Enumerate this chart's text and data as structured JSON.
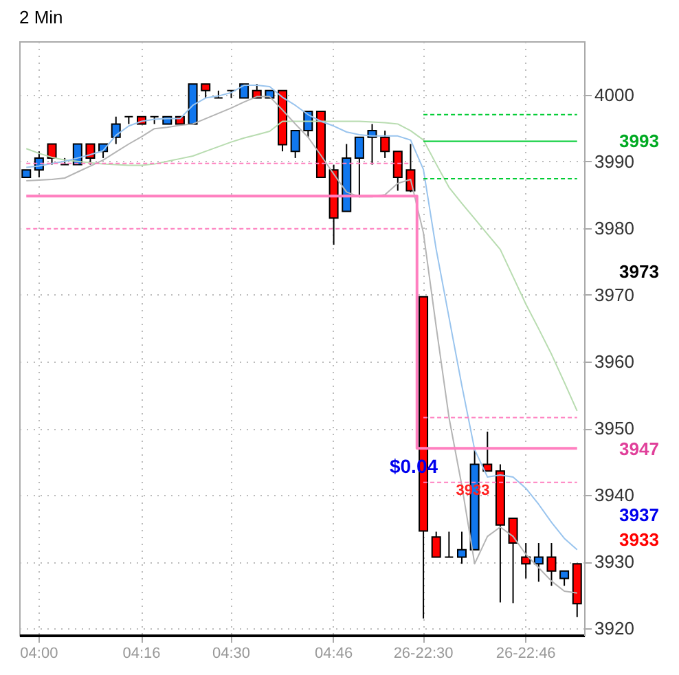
{
  "chart_data": {
    "type": "candlestick",
    "title": "2 Min",
    "categories": [
      null,
      "04:00",
      null,
      null,
      null,
      null,
      null,
      null,
      null,
      "04:16",
      null,
      null,
      null,
      null,
      null,
      null,
      "04:30",
      null,
      null,
      null,
      null,
      null,
      null,
      null,
      "04:46",
      null,
      null,
      null,
      null,
      null,
      null,
      "26-22:30",
      null,
      null,
      null,
      null,
      null,
      null,
      null,
      "26-22:46",
      null,
      null,
      null,
      null
    ],
    "ohlc": [
      [
        3987.6,
        3988.7,
        3987.6,
        3988.7
      ],
      [
        3988.7,
        3991.5,
        3987.6,
        3990.5
      ],
      [
        3992.6,
        3992.6,
        3989.5,
        3990.5
      ],
      [
        3989.5,
        3990.5,
        3989.5,
        3989.5
      ],
      [
        3989.5,
        3992.6,
        3989.5,
        3992.6
      ],
      [
        3992.6,
        3992.6,
        3989.5,
        3990.5
      ],
      [
        3991.5,
        3992.6,
        3990.5,
        3992.6
      ],
      [
        3993.6,
        3996.7,
        3992.6,
        3995.6
      ],
      [
        3996.7,
        3996.7,
        3995.6,
        3996.7
      ],
      [
        3996.7,
        3996.7,
        3995.6,
        3995.6
      ],
      [
        3996.7,
        3996.7,
        3995.6,
        3996.7
      ],
      [
        3995.6,
        3996.7,
        3995.6,
        3996.7
      ],
      [
        3996.7,
        3996.7,
        3995.6,
        3995.6
      ],
      [
        3995.6,
        4001.6,
        3995.6,
        4001.6
      ],
      [
        4001.6,
        4001.6,
        3999.5,
        4000.6
      ],
      [
        3999.5,
        4000.6,
        3999.5,
        3999.5
      ],
      [
        4000.6,
        4000.6,
        3999.5,
        4000.6
      ],
      [
        3999.5,
        4001.6,
        3999.5,
        4001.6
      ],
      [
        4000.6,
        4001.6,
        3999.5,
        3999.5
      ],
      [
        3999.5,
        4000.6,
        3999.5,
        4000.6
      ],
      [
        4000.6,
        4000.6,
        3991.5,
        3992.5
      ],
      [
        3991.5,
        3994.6,
        3990.5,
        3994.6
      ],
      [
        3994.6,
        3997.5,
        3993.6,
        3997.5
      ],
      [
        3997.5,
        3997.5,
        3987.6,
        3987.6
      ],
      [
        3988.7,
        3989.5,
        3977.5,
        3981.5
      ],
      [
        3982.5,
        3992.6,
        3982.5,
        3990.5
      ],
      [
        3990.5,
        3993.6,
        3984.6,
        3993.6
      ],
      [
        3993.6,
        3995.6,
        3989.5,
        3994.6
      ],
      [
        3993.6,
        3994.6,
        3990.5,
        3991.5
      ],
      [
        3991.5,
        3991.5,
        3985.6,
        3987.6
      ],
      [
        3988.7,
        3992.6,
        3985.4,
        3985.6
      ],
      [
        3969.7,
        3969.7,
        3921.5,
        3934.6
      ],
      [
        3933.7,
        3934.5,
        3930.7,
        3930.7
      ],
      [
        3930.7,
        3934.5,
        3930.7,
        3930.7
      ],
      [
        3930.7,
        3934.5,
        3929.7,
        3931.8
      ],
      [
        3931.8,
        3946.8,
        3931.8,
        3944.6
      ],
      [
        3944.6,
        3949.5,
        3943.6,
        3943.6
      ],
      [
        3943.6,
        3944.6,
        3923.9,
        3935.5
      ],
      [
        3936.5,
        3936.5,
        3923.8,
        3932.8
      ],
      [
        3930.7,
        3932.8,
        3927.5,
        3929.7
      ],
      [
        3929.7,
        3932.8,
        3927.0,
        3930.7
      ],
      [
        3930.7,
        3932.8,
        3926.4,
        3928.6
      ],
      [
        3927.5,
        3928.6,
        3926.4,
        3928.6
      ],
      [
        3929.7,
        3929.7,
        3921.7,
        3923.7
      ]
    ],
    "colors": [
      "#1177ee",
      "#1177ee",
      "#ff0000",
      "#000000",
      "#1177ee",
      "#ff0000",
      "#1177ee",
      "#1177ee",
      "#000000",
      "#ff0000",
      "#000000",
      "#1177ee",
      "#ff0000",
      "#1177ee",
      "#ff0000",
      "#000000",
      "#000000",
      "#1177ee",
      "#ff0000",
      "#1177ee",
      "#ff0000",
      "#1177ee",
      "#1177ee",
      "#ff0000",
      "#ff0000",
      "#1177ee",
      "#1177ee",
      "#1177ee",
      "#ff0000",
      "#ff0000",
      "#ff0000",
      "#ff0000",
      "#ff0000",
      "#000000",
      "#1177ee",
      "#1177ee",
      "#ff0000",
      "#ff0000",
      "#ff0000",
      "#ff0000",
      "#1177ee",
      "#ff0000",
      "#1177ee",
      "#ff0000"
    ],
    "series": [
      {
        "type": "line",
        "color": "#b8dcb0",
        "line_style": "solid",
        "values": [
          3991.9,
          3991.2,
          3990.6,
          3990.2,
          3990,
          3989.8,
          3989.6,
          3989.5,
          3989.4,
          3989.4,
          3989.6,
          3990,
          3990.4,
          3990.8,
          3991.5,
          3992.2,
          3992.9,
          3993.5,
          3994,
          3994.5,
          3996,
          3996,
          3996,
          3996,
          3996,
          3996,
          3996,
          3995.9,
          3995.8,
          3995.6,
          3994.6,
          3993.2,
          3989.6,
          3986.1,
          3983.7,
          3981.4,
          3979.1,
          3976.8,
          3972.7,
          3968.6,
          3964.9,
          3961.1,
          3956.9,
          3952.6
        ]
      },
      {
        "type": "line",
        "color": "#b4b4b4",
        "line_style": "solid",
        "values": [
          3987.1,
          3987.2,
          3987.3,
          3987.5,
          3988.4,
          3989.3,
          3990.2,
          3991.4,
          3992.6,
          3993.7,
          3994.9,
          3995.1,
          3995.4,
          3995.6,
          3996.4,
          3997.2,
          3998,
          3998.9,
          3999.7,
          3999.7,
          3997.7,
          3995.6,
          3993.6,
          3990.9,
          3988.1,
          3985.4,
          3984.7,
          3984.7,
          3985,
          3986.7,
          3987.3,
          3979.3,
          3965.2,
          3951.6,
          3941.4,
          3929.7,
          3933.8,
          3935.2,
          3933.8,
          3931.1,
          3929.1,
          3927.1,
          3925.6,
          3925.3
        ]
      },
      {
        "type": "line",
        "color": "#99c4ee",
        "line_style": "solid",
        "values": [
          3989.1,
          3989.3,
          3989.7,
          3990,
          3990.5,
          3991,
          3991.6,
          3993.9,
          3995.3,
          3996,
          3996.3,
          3996.4,
          3996.4,
          3998.4,
          3999.5,
          3999.8,
          4000.3,
          4001.4,
          4001.4,
          4001.2,
          3999.6,
          3998.4,
          3997,
          3996,
          3995.3,
          3994.4,
          3994,
          3993.8,
          3993.8,
          3993.8,
          3993.2,
          3988.8,
          3976.8,
          3966.6,
          3956.4,
          3946.8,
          3942.7,
          3943,
          3942.7,
          3941,
          3938.6,
          3935.9,
          3933.5,
          3931.8
        ]
      },
      {
        "type": "step",
        "color": "#ff80c0",
        "line_style": "solid",
        "values": [
          3984.8,
          3984.8,
          3984.8,
          3984.8,
          3984.8,
          3984.8,
          3984.8,
          3984.8,
          3984.8,
          3984.8,
          3984.8,
          3984.8,
          3984.8,
          3984.8,
          3984.8,
          3984.8,
          3984.8,
          3984.8,
          3984.8,
          3984.8,
          3984.8,
          3984.8,
          3984.8,
          3984.8,
          3984.8,
          3984.8,
          3984.8,
          3984.8,
          3984.8,
          3984.8,
          3984.8,
          3947,
          3947,
          3947,
          3947,
          3947,
          3947,
          3947,
          3947,
          3947,
          3947,
          3947,
          3947,
          3947
        ]
      },
      {
        "type": "line",
        "color": "#ff80c0",
        "line_style": "dashed",
        "values": [
          3989.7,
          3989.7,
          3989.7,
          3989.7,
          3989.7,
          3989.7,
          3989.7,
          3989.7,
          3989.7,
          3989.7,
          3989.7,
          3989.7,
          3989.7,
          3989.7,
          3989.7,
          3989.7,
          3989.7,
          3989.7,
          3989.7,
          3989.7,
          3989.7,
          3989.7,
          3989.7,
          3989.7,
          3989.7,
          3989.7,
          3989.7,
          3989.7,
          3989.7,
          3989.7,
          3989.7,
          null,
          null,
          null,
          null,
          null,
          null,
          null,
          null,
          null,
          null,
          null,
          null,
          null
        ]
      },
      {
        "type": "line",
        "color": "#ff80c0",
        "line_style": "dashed",
        "values": [
          3979.9,
          3979.9,
          3979.9,
          3979.9,
          3979.9,
          3979.9,
          3979.9,
          3979.9,
          3979.9,
          3979.9,
          3979.9,
          3979.9,
          3979.9,
          3979.9,
          3979.9,
          3979.9,
          3979.9,
          3979.9,
          3979.9,
          3979.9,
          3979.9,
          3979.9,
          3979.9,
          3979.9,
          3979.9,
          3979.9,
          3979.9,
          3979.9,
          3979.9,
          3979.9,
          3979.9,
          null,
          null,
          null,
          null,
          null,
          null,
          null,
          null,
          null,
          null,
          null,
          null,
          null
        ]
      },
      {
        "type": "line",
        "color": "#ff80c0",
        "line_style": "dashed",
        "values": [
          null,
          null,
          null,
          null,
          null,
          null,
          null,
          null,
          null,
          null,
          null,
          null,
          null,
          null,
          null,
          null,
          null,
          null,
          null,
          null,
          null,
          null,
          null,
          null,
          null,
          null,
          null,
          null,
          null,
          null,
          null,
          3951.6,
          3951.6,
          3951.6,
          3951.6,
          3951.6,
          3951.6,
          3951.6,
          3951.6,
          3951.6,
          3951.6,
          3951.6,
          3951.6,
          3951.6
        ]
      },
      {
        "type": "line",
        "color": "#ff80c0",
        "line_style": "dashed",
        "values": [
          null,
          null,
          null,
          null,
          null,
          null,
          null,
          null,
          null,
          null,
          null,
          null,
          null,
          null,
          null,
          null,
          null,
          null,
          null,
          null,
          null,
          null,
          null,
          null,
          null,
          null,
          null,
          null,
          null,
          null,
          null,
          3941.9,
          3941.9,
          3941.9,
          3941.9,
          3941.9,
          3941.9,
          3941.9,
          3941.9,
          3941.9,
          3941.9,
          3941.9,
          3941.9,
          3941.9
        ]
      },
      {
        "type": "line",
        "color": "#00cc33",
        "line_style": "solid",
        "values": [
          null,
          null,
          null,
          null,
          null,
          null,
          null,
          null,
          null,
          null,
          null,
          null,
          null,
          null,
          null,
          null,
          null,
          null,
          null,
          null,
          null,
          null,
          null,
          null,
          null,
          null,
          null,
          null,
          null,
          null,
          null,
          3993,
          3993,
          3993,
          3993,
          3993,
          3993,
          3993,
          3993,
          3993,
          3993,
          3993,
          3993,
          3993
        ]
      },
      {
        "type": "line",
        "color": "#00cc33",
        "line_style": "dashed",
        "values": [
          null,
          null,
          null,
          null,
          null,
          null,
          null,
          null,
          null,
          null,
          null,
          null,
          null,
          null,
          null,
          null,
          null,
          null,
          null,
          null,
          null,
          null,
          null,
          null,
          null,
          null,
          null,
          null,
          null,
          null,
          null,
          3997,
          3997,
          3997,
          3997,
          3997,
          3997,
          3997,
          3997,
          3997,
          3997,
          3997,
          3997,
          3997
        ]
      },
      {
        "type": "line",
        "color": "#00cc33",
        "line_style": "dashed",
        "values": [
          null,
          null,
          null,
          null,
          null,
          null,
          null,
          null,
          null,
          null,
          null,
          null,
          null,
          null,
          null,
          null,
          null,
          null,
          null,
          null,
          null,
          null,
          null,
          null,
          null,
          null,
          null,
          null,
          null,
          null,
          null,
          3987.4,
          3987.4,
          3987.4,
          3987.4,
          3987.4,
          3987.4,
          3987.4,
          3987.4,
          3987.4,
          3987.4,
          3987.4,
          3987.4,
          3987.4
        ]
      }
    ],
    "ylim": [
      3919,
      4008
    ],
    "yticks": [
      3920,
      3930,
      3940,
      3950,
      3960,
      3970,
      3980,
      3990,
      4000
    ],
    "annotations": [
      "3993",
      "3973",
      "3947",
      "3937",
      "3933",
      "$0.04",
      "3933"
    ],
    "grid": true,
    "marker": "none"
  }
}
